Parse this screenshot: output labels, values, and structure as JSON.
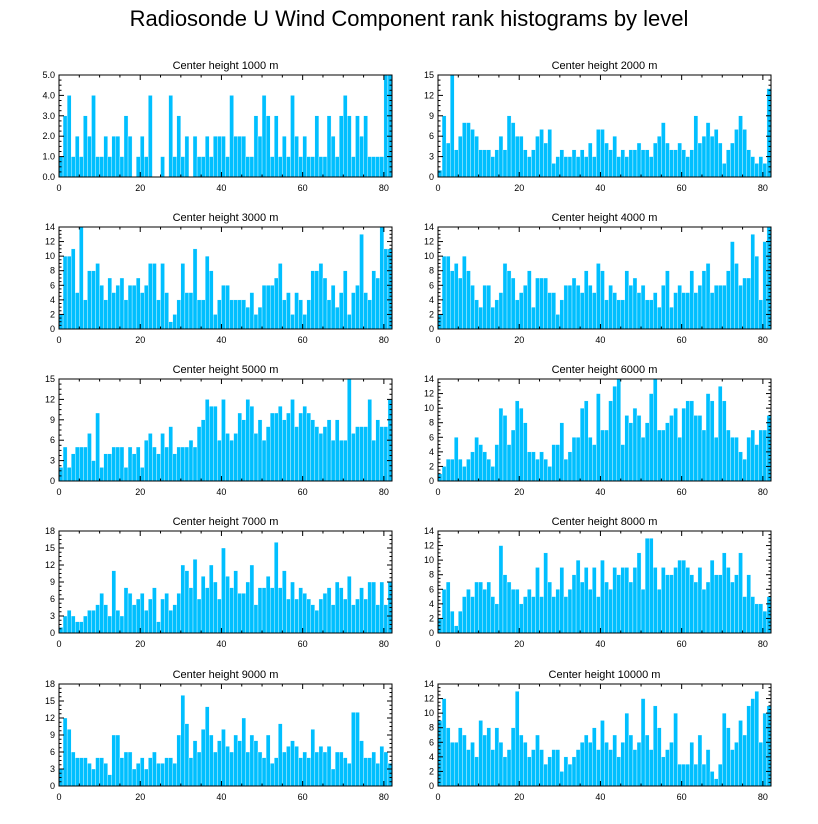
{
  "title": "Radiosonde U Wind Component rank histograms by level",
  "colors": {
    "bar": "#00BFFF",
    "axis": "#000000",
    "background": "#FFFFFF"
  },
  "chart_data": [
    {
      "type": "bar",
      "title": "Center height 1000 m",
      "xlabel": "",
      "ylabel": "",
      "xlim": [
        0,
        82
      ],
      "ylim": [
        0,
        5
      ],
      "xticks": [
        0,
        20,
        40,
        60,
        80
      ],
      "yticks": [
        0,
        1,
        2,
        3,
        4,
        5
      ],
      "ytick_labels": [
        "0.0",
        "1.0",
        "2.0",
        "3.0",
        "4.0",
        "5.0"
      ],
      "values": [
        1,
        3,
        4,
        1,
        2,
        1,
        3,
        2,
        4,
        1,
        1,
        2,
        1,
        2,
        2,
        1,
        3,
        2,
        0,
        1,
        2,
        1,
        4,
        0,
        0,
        1,
        0,
        4,
        1,
        3,
        1,
        2,
        0,
        2,
        1,
        1,
        2,
        1,
        2,
        2,
        2,
        1,
        4,
        2,
        2,
        2,
        1,
        1,
        3,
        2,
        4,
        3,
        1,
        3,
        1,
        2,
        1,
        4,
        2,
        1,
        2,
        1,
        1,
        3,
        1,
        1,
        3,
        2,
        1,
        3,
        4,
        3,
        1,
        3,
        2,
        3,
        1,
        1,
        1,
        1,
        5,
        5
      ]
    },
    {
      "type": "bar",
      "title": "Center height 2000 m",
      "xlabel": "",
      "ylabel": "",
      "xlim": [
        0,
        82
      ],
      "ylim": [
        0,
        15
      ],
      "xticks": [
        0,
        20,
        40,
        60,
        80
      ],
      "yticks": [
        0,
        3,
        6,
        9,
        12,
        15
      ],
      "ytick_labels": [
        "0",
        "3",
        "6",
        "9",
        "12",
        "15"
      ],
      "values": [
        1,
        9,
        5,
        15,
        4,
        6,
        8,
        8,
        7,
        6,
        4,
        4,
        4,
        3,
        4,
        6,
        4,
        9,
        8,
        6,
        6,
        4,
        3,
        4,
        6,
        7,
        5,
        7,
        2,
        3,
        4,
        3,
        3,
        4,
        3,
        4,
        3,
        5,
        3,
        7,
        7,
        5,
        4,
        6,
        3,
        4,
        3,
        4,
        4,
        5,
        4,
        4,
        3,
        5,
        6,
        8,
        5,
        4,
        4,
        5,
        4,
        3,
        4,
        9,
        5,
        6,
        8,
        6,
        7,
        5,
        2,
        4,
        5,
        7,
        9,
        7,
        4,
        3,
        2,
        3,
        2,
        13
      ]
    },
    {
      "type": "bar",
      "title": "Center height 3000 m",
      "xlabel": "",
      "ylabel": "",
      "xlim": [
        0,
        82
      ],
      "ylim": [
        0,
        14
      ],
      "xticks": [
        0,
        20,
        40,
        60,
        80
      ],
      "yticks": [
        0,
        2,
        4,
        6,
        8,
        10,
        12,
        14
      ],
      "ytick_labels": [
        "0",
        "2",
        "4",
        "6",
        "8",
        "10",
        "12",
        "14"
      ],
      "values": [
        2,
        10,
        10,
        11,
        5,
        14,
        4,
        8,
        8,
        9,
        6,
        4,
        7,
        5,
        6,
        7,
        4,
        6,
        6,
        7,
        5,
        6,
        9,
        9,
        4,
        9,
        5,
        1,
        2,
        4,
        9,
        5,
        5,
        11,
        4,
        4,
        10,
        8,
        2,
        4,
        6,
        6,
        4,
        4,
        4,
        4,
        3,
        5,
        2,
        3,
        6,
        6,
        6,
        7,
        9,
        4,
        5,
        2,
        5,
        4,
        2,
        4,
        8,
        8,
        9,
        7,
        4,
        6,
        3,
        5,
        8,
        2,
        5,
        6,
        13,
        5,
        4,
        8,
        7,
        14,
        11,
        11
      ]
    },
    {
      "type": "bar",
      "title": "Center height 4000 m",
      "xlabel": "",
      "ylabel": "",
      "xlim": [
        0,
        82
      ],
      "ylim": [
        0,
        14
      ],
      "xticks": [
        0,
        20,
        40,
        60,
        80
      ],
      "yticks": [
        0,
        2,
        4,
        6,
        8,
        10,
        12,
        14
      ],
      "ytick_labels": [
        "0",
        "2",
        "4",
        "6",
        "8",
        "10",
        "12",
        "14"
      ],
      "values": [
        2,
        10,
        10,
        8,
        9,
        7,
        10,
        8,
        6,
        4,
        3,
        6,
        6,
        3,
        4,
        5,
        9,
        8,
        7,
        4,
        5,
        6,
        8,
        3,
        7,
        7,
        7,
        5,
        5,
        2,
        4,
        6,
        6,
        7,
        6,
        5,
        8,
        6,
        5,
        9,
        8,
        4,
        6,
        5,
        4,
        4,
        8,
        6,
        7,
        5,
        6,
        4,
        4,
        5,
        3,
        6,
        8,
        3,
        5,
        6,
        5,
        5,
        8,
        5,
        6,
        8,
        9,
        5,
        6,
        6,
        6,
        8,
        12,
        9,
        6,
        7,
        7,
        13,
        10,
        4,
        12,
        14
      ]
    },
    {
      "type": "bar",
      "title": "Center height 5000 m",
      "xlabel": "",
      "ylabel": "",
      "xlim": [
        0,
        82
      ],
      "ylim": [
        0,
        15
      ],
      "xticks": [
        0,
        20,
        40,
        60,
        80
      ],
      "yticks": [
        0,
        3,
        6,
        9,
        12,
        15
      ],
      "ytick_labels": [
        "0",
        "3",
        "6",
        "9",
        "12",
        "15"
      ],
      "values": [
        2,
        5,
        2,
        4,
        5,
        5,
        5,
        7,
        3,
        10,
        2,
        4,
        4,
        5,
        5,
        5,
        2,
        5,
        4,
        5,
        2,
        6,
        7,
        5,
        4,
        7,
        5,
        8,
        4,
        5,
        5,
        5,
        6,
        5,
        8,
        9,
        12,
        11,
        11,
        6,
        12,
        7,
        6,
        7,
        10,
        9,
        12,
        11,
        7,
        9,
        6,
        8,
        10,
        10,
        11,
        9,
        10,
        12,
        8,
        10,
        11,
        10,
        9,
        8,
        7,
        8,
        9,
        6,
        9,
        6,
        6,
        15,
        7,
        8,
        8,
        8,
        12,
        6,
        9,
        8,
        8,
        12
      ]
    },
    {
      "type": "bar",
      "title": "Center height 6000 m",
      "xlabel": "",
      "ylabel": "",
      "xlim": [
        0,
        82
      ],
      "ylim": [
        0,
        14
      ],
      "xticks": [
        0,
        20,
        40,
        60,
        80
      ],
      "yticks": [
        0,
        2,
        4,
        6,
        8,
        10,
        12,
        14
      ],
      "ytick_labels": [
        "0",
        "2",
        "4",
        "6",
        "8",
        "10",
        "12",
        "14"
      ],
      "values": [
        1,
        2,
        3,
        3,
        6,
        3,
        2,
        3,
        4,
        6,
        5,
        4,
        3,
        2,
        5,
        10,
        9,
        5,
        7,
        11,
        10,
        8,
        4,
        4,
        3,
        4,
        3,
        2,
        5,
        5,
        8,
        3,
        4,
        6,
        6,
        10,
        11,
        6,
        5,
        12,
        7,
        7,
        11,
        13,
        14,
        5,
        9,
        8,
        10,
        9,
        6,
        8,
        12,
        14,
        7,
        7,
        8,
        9,
        10,
        6,
        10,
        11,
        11,
        9,
        9,
        7,
        12,
        11,
        6,
        13,
        11,
        7,
        6,
        6,
        4,
        3,
        6,
        7,
        5,
        7,
        7,
        9
      ]
    },
    {
      "type": "bar",
      "title": "Center height 7000 m",
      "xlabel": "",
      "ylabel": "",
      "xlim": [
        0,
        82
      ],
      "ylim": [
        0,
        18
      ],
      "xticks": [
        0,
        20,
        40,
        60,
        80
      ],
      "yticks": [
        0,
        3,
        6,
        9,
        12,
        15,
        18
      ],
      "ytick_labels": [
        "0",
        "3",
        "6",
        "9",
        "12",
        "15",
        "18"
      ],
      "values": [
        1,
        3,
        4,
        3,
        2,
        2,
        3,
        4,
        4,
        5,
        7,
        5,
        3,
        11,
        4,
        3,
        8,
        7,
        5,
        6,
        7,
        4,
        6,
        8,
        2,
        6,
        7,
        4,
        5,
        7,
        12,
        11,
        8,
        13,
        6,
        10,
        8,
        12,
        9,
        6,
        15,
        10,
        8,
        11,
        7,
        7,
        9,
        12,
        5,
        8,
        8,
        10,
        8,
        16,
        8,
        11,
        6,
        9,
        6,
        8,
        7,
        6,
        5,
        4,
        6,
        7,
        8,
        5,
        9,
        8,
        6,
        10,
        5,
        6,
        8,
        6,
        9,
        9,
        5,
        9,
        5,
        9
      ]
    },
    {
      "type": "bar",
      "title": "Center height 8000 m",
      "xlabel": "",
      "ylabel": "",
      "xlim": [
        0,
        82
      ],
      "ylim": [
        0,
        14
      ],
      "xticks": [
        0,
        20,
        40,
        60,
        80
      ],
      "yticks": [
        0,
        2,
        4,
        6,
        8,
        10,
        12,
        14
      ],
      "ytick_labels": [
        "0",
        "2",
        "4",
        "6",
        "8",
        "10",
        "12",
        "14"
      ],
      "values": [
        2,
        6,
        7,
        3,
        1,
        3,
        5,
        6,
        5,
        7,
        7,
        6,
        7,
        5,
        4,
        12,
        8,
        7,
        6,
        6,
        4,
        5,
        6,
        5,
        9,
        5,
        11,
        7,
        5,
        6,
        9,
        5,
        6,
        8,
        10,
        7,
        9,
        6,
        9,
        5,
        10,
        7,
        6,
        9,
        8,
        9,
        9,
        7,
        9,
        11,
        6,
        13,
        13,
        9,
        6,
        9,
        8,
        8,
        9,
        10,
        10,
        9,
        8,
        7,
        9,
        6,
        7,
        10,
        8,
        8,
        11,
        9,
        7,
        8,
        11,
        5,
        8,
        5,
        4,
        4,
        3,
        5
      ]
    },
    {
      "type": "bar",
      "title": "Center height 9000 m",
      "xlabel": "",
      "ylabel": "",
      "xlim": [
        0,
        82
      ],
      "ylim": [
        0,
        18
      ],
      "xticks": [
        0,
        20,
        40,
        60,
        80
      ],
      "yticks": [
        0,
        3,
        6,
        9,
        12,
        15,
        18
      ],
      "ytick_labels": [
        "0",
        "3",
        "6",
        "9",
        "12",
        "15",
        "18"
      ],
      "values": [
        3,
        12,
        10,
        6,
        5,
        5,
        5,
        4,
        3,
        5,
        5,
        4,
        2,
        9,
        9,
        5,
        6,
        6,
        3,
        4,
        5,
        3,
        5,
        6,
        4,
        4,
        5,
        5,
        4,
        9,
        16,
        11,
        5,
        8,
        6,
        10,
        14,
        9,
        6,
        8,
        10,
        7,
        6,
        9,
        8,
        12,
        6,
        9,
        8,
        6,
        5,
        9,
        4,
        5,
        11,
        6,
        7,
        8,
        7,
        5,
        6,
        5,
        10,
        6,
        7,
        6,
        7,
        3,
        6,
        6,
        5,
        4,
        13,
        13,
        8,
        5,
        5,
        6,
        4,
        7,
        6,
        4
      ]
    },
    {
      "type": "bar",
      "title": "Center height 10000 m",
      "xlabel": "",
      "ylabel": "",
      "xlim": [
        0,
        82
      ],
      "ylim": [
        0,
        14
      ],
      "xticks": [
        0,
        20,
        40,
        60,
        80
      ],
      "yticks": [
        0,
        2,
        4,
        6,
        8,
        10,
        12,
        14
      ],
      "ytick_labels": [
        "0",
        "2",
        "4",
        "6",
        "8",
        "10",
        "12",
        "14"
      ],
      "values": [
        9,
        12,
        8,
        6,
        6,
        8,
        7,
        5,
        6,
        4,
        9,
        7,
        8,
        5,
        8,
        6,
        4,
        5,
        8,
        13,
        7,
        6,
        4,
        5,
        7,
        5,
        3,
        4,
        5,
        5,
        2,
        4,
        3,
        4,
        5,
        6,
        7,
        6,
        8,
        5,
        9,
        6,
        5,
        7,
        4,
        6,
        10,
        7,
        5,
        6,
        12,
        7,
        5,
        11,
        8,
        4,
        5,
        6,
        10,
        3,
        3,
        3,
        6,
        3,
        7,
        3,
        5,
        2,
        1,
        3,
        10,
        8,
        5,
        6,
        9,
        7,
        11,
        12,
        13,
        6,
        10,
        11
      ]
    }
  ]
}
